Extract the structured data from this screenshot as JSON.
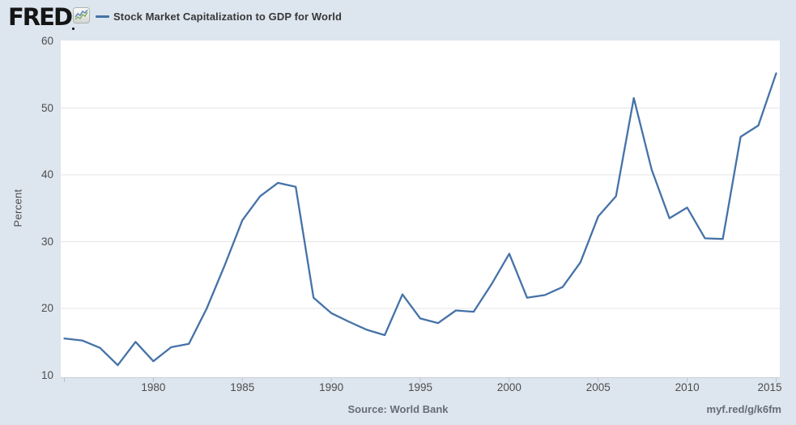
{
  "header": {
    "logo_text": "FRED",
    "title": "Stock Market Capitalization to GDP for World"
  },
  "footer": {
    "source": "Source: World Bank",
    "permalink": "myf.red/g/k6fm"
  },
  "colors": {
    "background": "#dde5ee",
    "plot_background": "#ffffff",
    "series_line": "#4572a7",
    "gridline": "#e4e4e4",
    "axis_line": "#c9d0da",
    "tick_mark": "#b9c0cc",
    "logo_icon_blue": "#5b84b1",
    "logo_icon_green": "#7faf5f"
  },
  "chart_data": {
    "type": "line",
    "title": "Stock Market Capitalization to GDP for World",
    "series_name": "Stock Market Capitalization to GDP for World",
    "xlabel": "",
    "ylabel": "Percent",
    "x": [
      1975,
      1976,
      1977,
      1978,
      1979,
      1980,
      1981,
      1982,
      1983,
      1984,
      1985,
      1986,
      1987,
      1988,
      1989,
      1990,
      1991,
      1992,
      1993,
      1994,
      1995,
      1996,
      1997,
      1998,
      1999,
      2000,
      2001,
      2002,
      2003,
      2004,
      2005,
      2006,
      2007,
      2008,
      2009,
      2010,
      2011,
      2012,
      2013,
      2014,
      2015
    ],
    "values": [
      15.5,
      15.2,
      14.1,
      11.5,
      15.0,
      12.1,
      14.2,
      14.7,
      20.0,
      26.4,
      33.2,
      36.8,
      38.8,
      38.2,
      21.6,
      19.3,
      18.0,
      16.8,
      16.0,
      22.1,
      18.5,
      17.8,
      19.7,
      19.5,
      23.6,
      28.2,
      21.6,
      22.0,
      23.2,
      26.9,
      33.8,
      36.8,
      51.5,
      40.8,
      33.5,
      35.1,
      30.5,
      30.4,
      45.7,
      47.4,
      55.2
    ],
    "ylim": [
      10,
      60
    ],
    "yticks": [
      10,
      20,
      30,
      40,
      50,
      60
    ],
    "xticks": [
      1975,
      1980,
      1985,
      1990,
      1995,
      2000,
      2005,
      2010,
      2015
    ],
    "xtick_labels": [
      "1980",
      "1985",
      "1990",
      "1995",
      "2000",
      "2005",
      "2010",
      "2015"
    ],
    "grid": "horizontal",
    "legend_position": "top-header"
  }
}
